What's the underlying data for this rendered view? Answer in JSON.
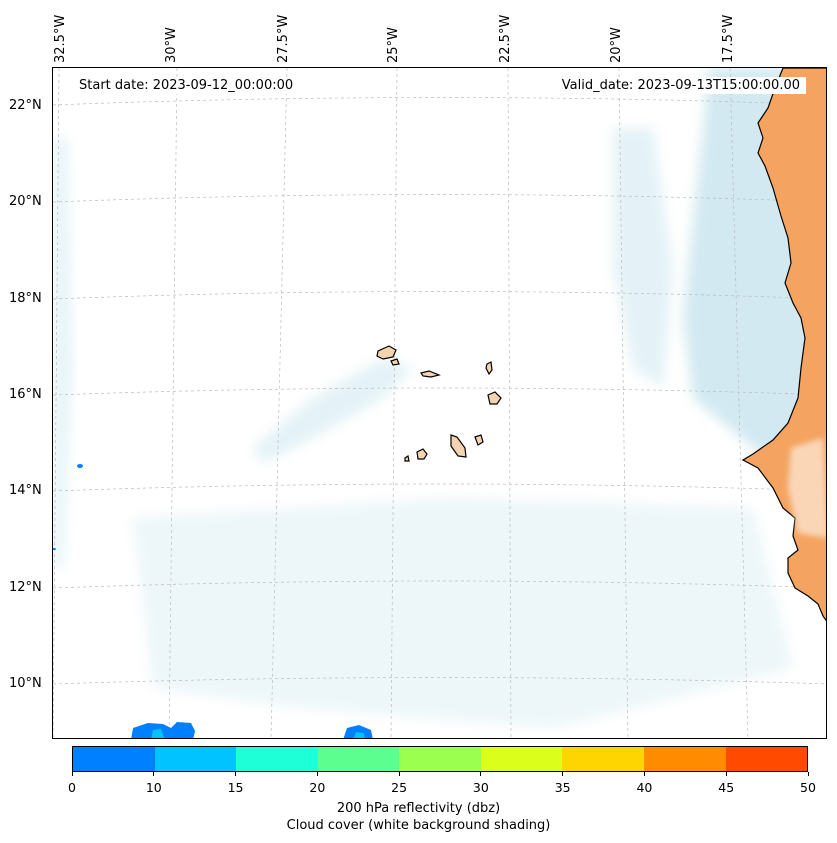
{
  "map": {
    "start_date": "Start date: 2023-09-12_00:00:00",
    "valid_date": "Valid_date: 2023-09-13T15:00:00.00",
    "lon_labels": [
      "32.5°W",
      "30°W",
      "27.5°W",
      "25°W",
      "22.5°W",
      "20°W",
      "17.5°W"
    ],
    "lat_labels": [
      "22°N",
      "20°N",
      "18°N",
      "16°N",
      "14°N",
      "12°N",
      "10°N"
    ],
    "colors": {
      "land": "#f4a460",
      "cloud": "#add8e6",
      "coast": "#000000",
      "grid": "#bbbbbb"
    }
  },
  "colorbar": {
    "ticks": [
      "0",
      "10",
      "15",
      "20",
      "25",
      "30",
      "35",
      "40",
      "45",
      "50"
    ],
    "colors": [
      "#0080ff",
      "#00c3ff",
      "#1effd8",
      "#5cff8f",
      "#9bff4f",
      "#dbff1a",
      "#ffd500",
      "#ff8c00",
      "#ff4a00"
    ],
    "label_line1": "200 hPa reflectivity (dbz)",
    "label_line2": "Cloud cover (white background shading)"
  }
}
